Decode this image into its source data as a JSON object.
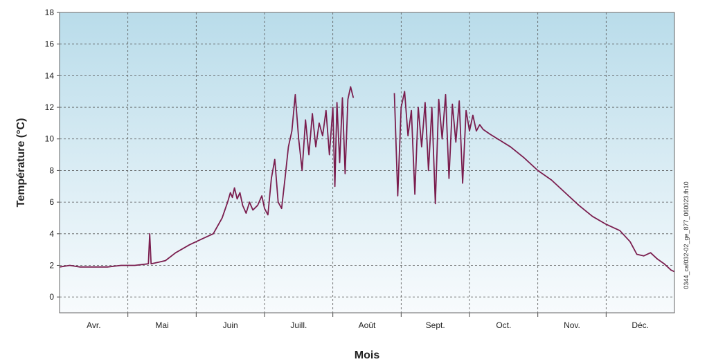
{
  "chart_data": {
    "type": "line",
    "title": "",
    "xlabel": "Mois",
    "ylabel": "Température  (°C)",
    "ylim": [
      -1,
      18
    ],
    "yticks": [
      0,
      2,
      4,
      6,
      8,
      10,
      12,
      14,
      16,
      18
    ],
    "months": [
      "Avr.",
      "Mai",
      "Juin",
      "Juill.",
      "Août",
      "Sept.",
      "Oct.",
      "Nov.",
      "Déc."
    ],
    "grid": true,
    "line_color": "#7a1d4e",
    "annotation": "0344_caf032-02_ge_877_060023.fh10",
    "series": [
      {
        "segments": [
          [
            [
              0.0,
              1.9
            ],
            [
              0.15,
              2.0
            ],
            [
              0.3,
              1.9
            ],
            [
              0.5,
              1.9
            ],
            [
              0.7,
              1.9
            ],
            [
              0.9,
              2.0
            ],
            [
              1.1,
              2.0
            ],
            [
              1.3,
              2.1
            ],
            [
              1.32,
              4.0
            ],
            [
              1.34,
              2.1
            ],
            [
              1.45,
              2.2
            ],
            [
              1.55,
              2.3
            ],
            [
              1.7,
              2.8
            ],
            [
              1.9,
              3.3
            ],
            [
              2.1,
              3.7
            ],
            [
              2.25,
              4.0
            ],
            [
              2.38,
              5.0
            ],
            [
              2.46,
              6.0
            ],
            [
              2.5,
              6.6
            ],
            [
              2.53,
              6.3
            ],
            [
              2.56,
              6.9
            ],
            [
              2.6,
              6.2
            ],
            [
              2.64,
              6.6
            ],
            [
              2.68,
              5.8
            ],
            [
              2.73,
              5.3
            ],
            [
              2.78,
              6.0
            ],
            [
              2.83,
              5.5
            ],
            [
              2.9,
              5.8
            ],
            [
              2.96,
              6.4
            ],
            [
              3.0,
              5.6
            ],
            [
              3.05,
              5.2
            ],
            [
              3.1,
              7.5
            ],
            [
              3.15,
              8.7
            ],
            [
              3.2,
              6.0
            ],
            [
              3.25,
              5.6
            ],
            [
              3.3,
              7.5
            ],
            [
              3.35,
              9.5
            ],
            [
              3.4,
              10.5
            ],
            [
              3.45,
              12.8
            ],
            [
              3.5,
              10.0
            ],
            [
              3.55,
              8.0
            ],
            [
              3.6,
              11.2
            ],
            [
              3.65,
              9.0
            ],
            [
              3.7,
              11.6
            ],
            [
              3.75,
              9.5
            ],
            [
              3.8,
              11.0
            ],
            [
              3.85,
              10.2
            ],
            [
              3.9,
              11.8
            ],
            [
              3.95,
              9.0
            ],
            [
              4.0,
              12.0
            ],
            [
              4.03,
              7.0
            ],
            [
              4.06,
              12.3
            ],
            [
              4.1,
              8.5
            ],
            [
              4.14,
              12.6
            ],
            [
              4.18,
              7.8
            ],
            [
              4.22,
              12.5
            ],
            [
              4.26,
              13.3
            ],
            [
              4.3,
              12.6
            ]
          ],
          [
            [
              4.9,
              12.9
            ],
            [
              4.95,
              6.4
            ],
            [
              5.0,
              12.0
            ],
            [
              5.05,
              13.0
            ],
            [
              5.1,
              10.2
            ],
            [
              5.15,
              11.8
            ],
            [
              5.2,
              6.5
            ],
            [
              5.25,
              12.0
            ],
            [
              5.3,
              9.5
            ],
            [
              5.35,
              12.3
            ],
            [
              5.4,
              8.0
            ],
            [
              5.45,
              12.0
            ],
            [
              5.5,
              5.9
            ],
            [
              5.55,
              12.5
            ],
            [
              5.6,
              10.0
            ],
            [
              5.65,
              12.8
            ],
            [
              5.7,
              7.5
            ],
            [
              5.75,
              12.2
            ],
            [
              5.8,
              9.8
            ],
            [
              5.85,
              12.4
            ],
            [
              5.9,
              7.2
            ],
            [
              5.95,
              11.8
            ],
            [
              6.0,
              10.5
            ],
            [
              6.05,
              11.5
            ],
            [
              6.1,
              10.5
            ],
            [
              6.15,
              10.9
            ],
            [
              6.2,
              10.6
            ],
            [
              6.3,
              10.3
            ],
            [
              6.45,
              9.9
            ],
            [
              6.6,
              9.5
            ],
            [
              6.8,
              8.8
            ],
            [
              7.0,
              8.0
            ],
            [
              7.2,
              7.4
            ],
            [
              7.4,
              6.6
            ],
            [
              7.6,
              5.8
            ],
            [
              7.8,
              5.1
            ],
            [
              8.0,
              4.6
            ],
            [
              8.2,
              4.2
            ],
            [
              8.35,
              3.5
            ],
            [
              8.45,
              2.7
            ],
            [
              8.55,
              2.6
            ],
            [
              8.65,
              2.8
            ],
            [
              8.75,
              2.4
            ],
            [
              8.85,
              2.1
            ],
            [
              8.95,
              1.7
            ],
            [
              9.0,
              1.6
            ]
          ]
        ]
      }
    ]
  }
}
